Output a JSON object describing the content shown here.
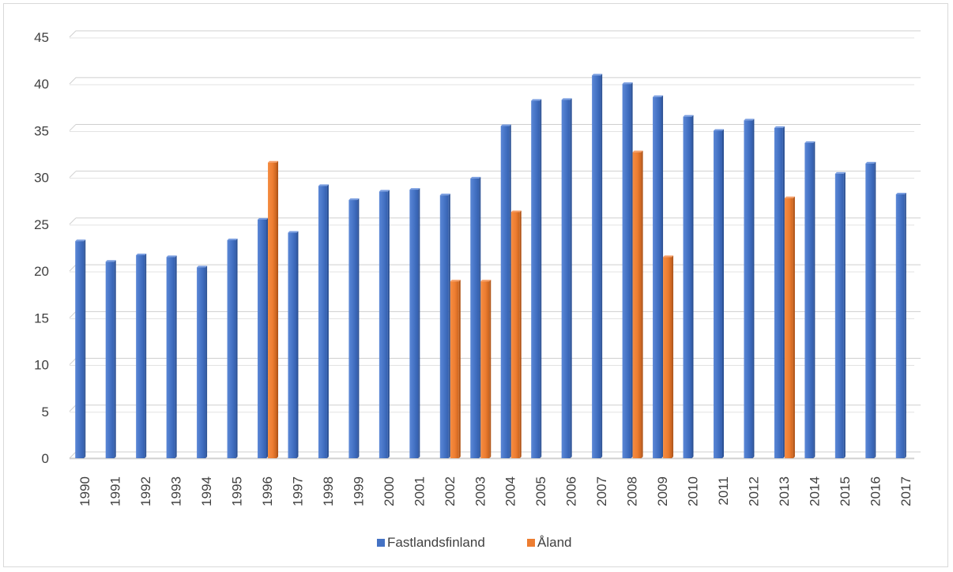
{
  "chart_data": {
    "type": "bar",
    "title": "",
    "xlabel": "",
    "ylabel": "",
    "ylim": [
      0,
      45
    ],
    "yticks": [
      0,
      5,
      10,
      15,
      20,
      25,
      30,
      35,
      40,
      45
    ],
    "grid": true,
    "legend_position": "bottom",
    "categories": [
      "1990",
      "1991",
      "1992",
      "1993",
      "1994",
      "1995",
      "1996",
      "1997",
      "1998",
      "1999",
      "2000",
      "2001",
      "2002",
      "2003",
      "2004",
      "2005",
      "2006",
      "2007",
      "2008",
      "2009",
      "2010",
      "2011",
      "2012",
      "2013",
      "2014",
      "2015",
      "2016",
      "2017"
    ],
    "series": [
      {
        "name": "Fastlandsfinland",
        "color": "#4472C4",
        "values": [
          23.2,
          21.0,
          21.7,
          21.5,
          20.4,
          23.3,
          25.5,
          24.1,
          29.1,
          27.6,
          28.5,
          28.7,
          28.1,
          29.9,
          35.5,
          38.2,
          38.3,
          40.9,
          40.0,
          38.6,
          36.5,
          35.0,
          36.1,
          35.3,
          33.7,
          30.4,
          31.5,
          28.2
        ]
      },
      {
        "name": "Åland",
        "color": "#ED7D31",
        "values": [
          null,
          null,
          null,
          null,
          null,
          null,
          31.6,
          null,
          null,
          null,
          null,
          null,
          18.9,
          18.9,
          26.3,
          null,
          null,
          null,
          32.7,
          21.5,
          null,
          null,
          null,
          27.8,
          null,
          null,
          null,
          null
        ]
      }
    ]
  }
}
